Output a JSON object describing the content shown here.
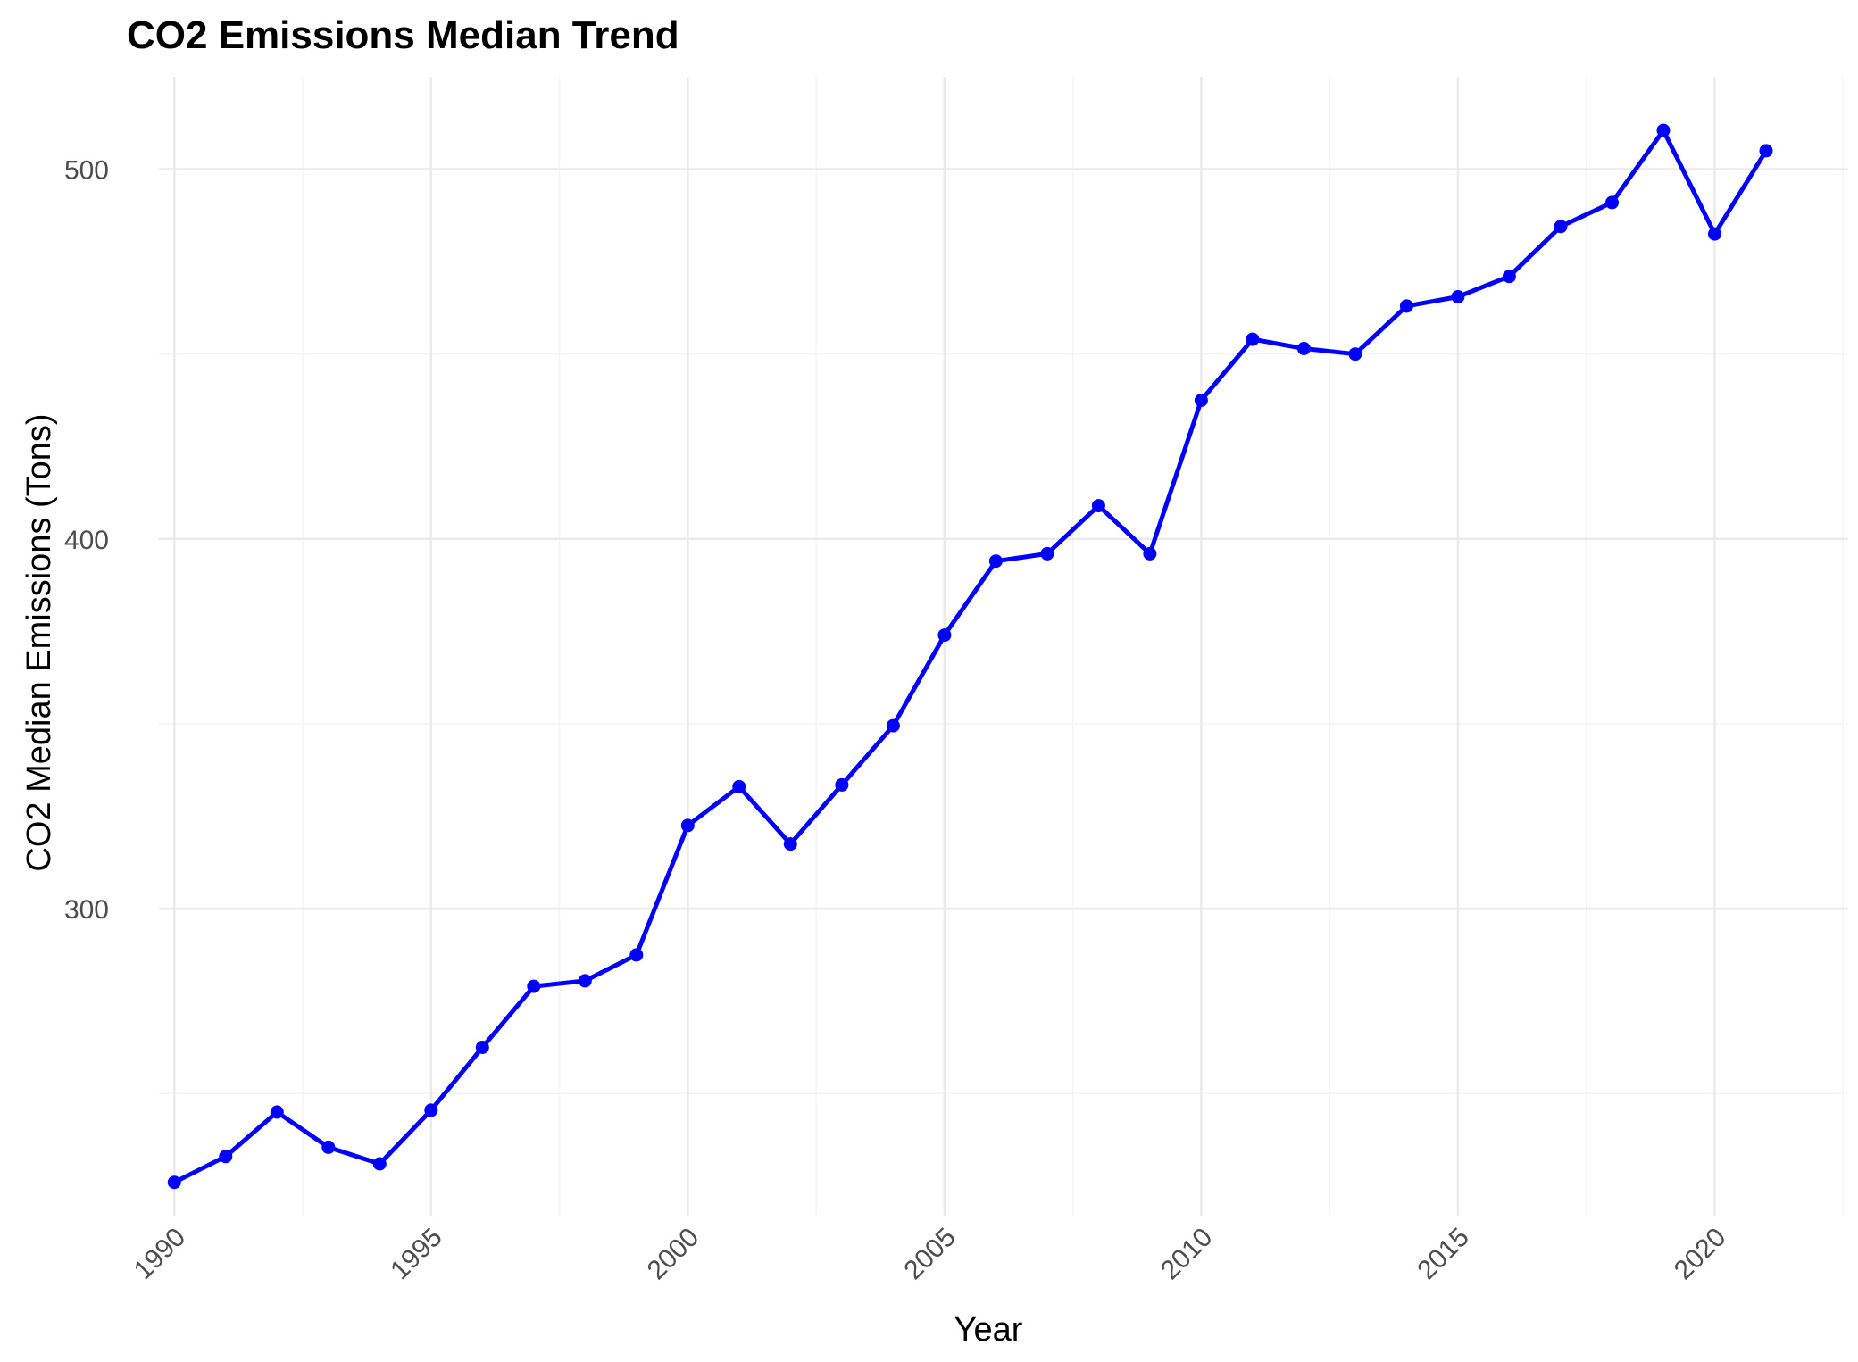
{
  "chart_data": {
    "type": "line",
    "title": "CO2 Emissions Median Trend",
    "xlabel": "Year",
    "ylabel": "CO2 Median Emissions (Tons)",
    "x": [
      1990,
      1991,
      1992,
      1993,
      1994,
      1995,
      1996,
      1997,
      1998,
      1999,
      2000,
      2001,
      2002,
      2003,
      2004,
      2005,
      2006,
      2007,
      2008,
      2009,
      2010,
      2011,
      2012,
      2013,
      2014,
      2015,
      2016,
      2017,
      2018,
      2019,
      2020,
      2021
    ],
    "series": [
      {
        "values": [
          226,
          233,
          245,
          235.5,
          231,
          245.5,
          262.5,
          279,
          280.5,
          287.5,
          322.5,
          333,
          317.5,
          333.5,
          349.5,
          374,
          394,
          396,
          409,
          396,
          437.5,
          454,
          451.5,
          450,
          463,
          465.5,
          471,
          484.5,
          491,
          510.5,
          482.5,
          505
        ],
        "color": "#0000ff"
      }
    ],
    "x_ticks": [
      "1990",
      "1995",
      "2000",
      "2005",
      "2010",
      "2015",
      "2020"
    ],
    "y_ticks": [
      "300",
      "400",
      "500"
    ],
    "xlim": [
      1989.7,
      2022.6
    ],
    "ylim": [
      217,
      525
    ],
    "grid": true,
    "legend": "none"
  }
}
